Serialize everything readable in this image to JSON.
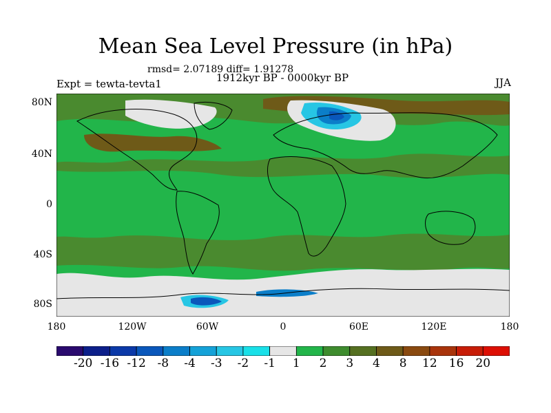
{
  "title": "Mean Sea Level Pressure (in hPa)",
  "stats": "rmsd= 2.07189 diff= 1.91278",
  "subtitle": "1912kyr BP - 0000kyr BP",
  "expt": "Expt = tewta-tevta1",
  "season": "JJA",
  "lat_labels": [
    "80N",
    "40N",
    "0",
    "40S",
    "80S"
  ],
  "lon_labels": [
    "180",
    "120W",
    "60W",
    "0",
    "60E",
    "120E",
    "180"
  ],
  "colorbar": {
    "labels": [
      "-20",
      "-16",
      "-12",
      "-8",
      "-4",
      "-3",
      "-2",
      "-1",
      "1",
      "2",
      "3",
      "4",
      "8",
      "12",
      "16",
      "20"
    ],
    "colors": [
      "#2a0a6e",
      "#0c1f8a",
      "#0b39a8",
      "#0a57bb",
      "#0b7ec9",
      "#15a2d8",
      "#27c6e4",
      "#19e0e8",
      "#e6e6e6",
      "#22b54a",
      "#3e8c2e",
      "#557021",
      "#6e5a18",
      "#8a4a10",
      "#a9340b",
      "#c71d07",
      "#dd0f04"
    ]
  },
  "map": {
    "background_color": "#4a8a2f",
    "colors": {
      "land_line": "#000000",
      "white": "#e6e6e6",
      "green": "#22b54a",
      "brown": "#6e5a18",
      "lightblue": "#27c6e4",
      "blue": "#0b7ec9",
      "darkblue": "#0a57bb"
    }
  }
}
